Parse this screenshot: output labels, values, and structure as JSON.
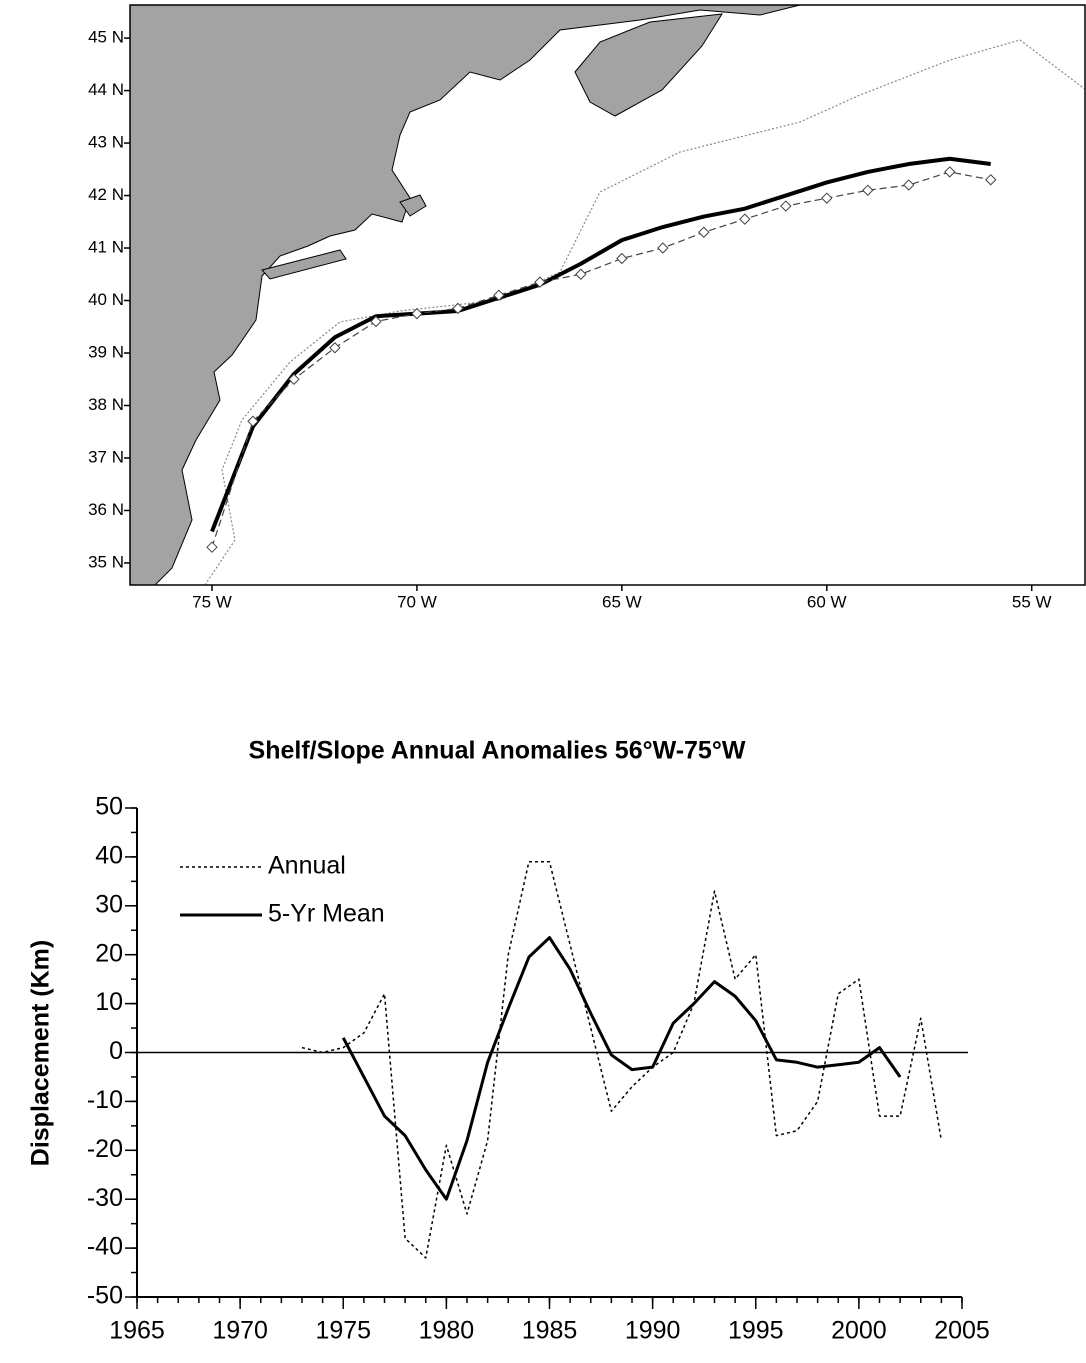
{
  "chart_data": [
    {
      "type": "map",
      "xlim": [
        -77,
        -53.7
      ],
      "ylim": [
        34.58,
        45.63
      ],
      "xticks": [
        {
          "value": -75,
          "label": "75 W"
        },
        {
          "value": -70,
          "label": "70 W"
        },
        {
          "value": -65,
          "label": "65 W"
        },
        {
          "value": -60,
          "label": "60 W"
        },
        {
          "value": -55,
          "label": "55 W"
        }
      ],
      "yticks": [
        {
          "value": 35,
          "label": "35 N"
        },
        {
          "value": 36,
          "label": "36 N"
        },
        {
          "value": 37,
          "label": "37 N"
        },
        {
          "value": 38,
          "label": "38 N"
        },
        {
          "value": 39,
          "label": "39 N"
        },
        {
          "value": 40,
          "label": "40 N"
        },
        {
          "value": 41,
          "label": "41 N"
        },
        {
          "value": 42,
          "label": "42 N"
        },
        {
          "value": 43,
          "label": "43 N"
        },
        {
          "value": 44,
          "label": "44 N"
        },
        {
          "value": 45,
          "label": "45 N"
        }
      ],
      "series": [
        {
          "color": "#000000",
          "style": "solid",
          "width": 4,
          "x": [
            -75,
            -74,
            -73,
            -72,
            -71,
            -70,
            -69,
            -68,
            -67,
            -66,
            -65,
            -64,
            -63,
            -62,
            -61,
            -60,
            -59,
            -58,
            -57,
            -56
          ],
          "values": [
            35.6,
            37.6,
            38.6,
            39.3,
            39.7,
            39.75,
            39.8,
            40.05,
            40.3,
            40.7,
            41.15,
            41.4,
            41.6,
            41.75,
            42.0,
            42.25,
            42.45,
            42.6,
            42.7,
            42.6
          ]
        },
        {
          "color": "#444444",
          "style": "dashed",
          "width": 1.2,
          "marker": "diamond",
          "x": [
            -75,
            -74,
            -73,
            -72,
            -71,
            -70,
            -69,
            -68,
            -67,
            -66,
            -65,
            -64,
            -63,
            -62,
            -61,
            -60,
            -59,
            -58,
            -57,
            -56
          ],
          "values": [
            35.3,
            37.7,
            38.5,
            39.1,
            39.6,
            39.75,
            39.85,
            40.1,
            40.35,
            40.5,
            40.8,
            41.0,
            41.3,
            41.55,
            41.8,
            41.95,
            42.1,
            42.2,
            42.45,
            42.3
          ]
        }
      ]
    },
    {
      "type": "line",
      "title": "Shelf/Slope Annual Anomalies  56°W-75°W",
      "y_label": "Displacement (Km)",
      "xlim": [
        1965,
        2005
      ],
      "xticks": [
        1965,
        1970,
        1975,
        1980,
        1985,
        1990,
        1995,
        2000,
        2005
      ],
      "xminor": 1,
      "ylim": [
        -50,
        50
      ],
      "yticks": [
        -50,
        -40,
        -30,
        -20,
        -10,
        0,
        10,
        20,
        30,
        40,
        50
      ],
      "yminor": 5,
      "zero_line": true,
      "legend": "upper left",
      "series": [
        {
          "name": "Annual",
          "color": "#000000",
          "style": "dotted",
          "width": 1.5,
          "x": [
            1973,
            1974,
            1975,
            1976,
            1977,
            1978,
            1979,
            1980,
            1981,
            1982,
            1983,
            1984,
            1985,
            1986,
            1987,
            1988,
            1989,
            1990,
            1991,
            1992,
            1993,
            1994,
            1995,
            1996,
            1997,
            1998,
            1999,
            2000,
            2001,
            2002,
            2003,
            2004
          ],
          "values": [
            1,
            0,
            1,
            4,
            12,
            -38,
            -42,
            -19,
            -33,
            -18,
            20,
            39,
            39,
            22,
            5,
            -12,
            -7,
            -3,
            0,
            10,
            33,
            15,
            20,
            -17,
            -16,
            -10,
            12,
            15,
            -13,
            -13,
            7,
            -18
          ]
        },
        {
          "name": "5-Yr Mean",
          "color": "#000000",
          "style": "solid",
          "width": 3,
          "x": [
            1975,
            1976,
            1977,
            1978,
            1979,
            1980,
            1981,
            1982,
            1983,
            1984,
            1985,
            1986,
            1987,
            1988,
            1989,
            1990,
            1991,
            1992,
            1993,
            1994,
            1995,
            1996,
            1997,
            1998,
            1999,
            2000,
            2001,
            2002
          ],
          "values": [
            3,
            -5,
            -13,
            -17,
            -24,
            -30,
            -18,
            -2,
            9,
            19.5,
            23.5,
            17,
            8,
            -0.5,
            -3.5,
            -3,
            6,
            10,
            14.5,
            11.5,
            6.5,
            -1.5,
            -2,
            -3,
            -2.5,
            -2,
            1,
            -5
          ]
        }
      ]
    }
  ]
}
